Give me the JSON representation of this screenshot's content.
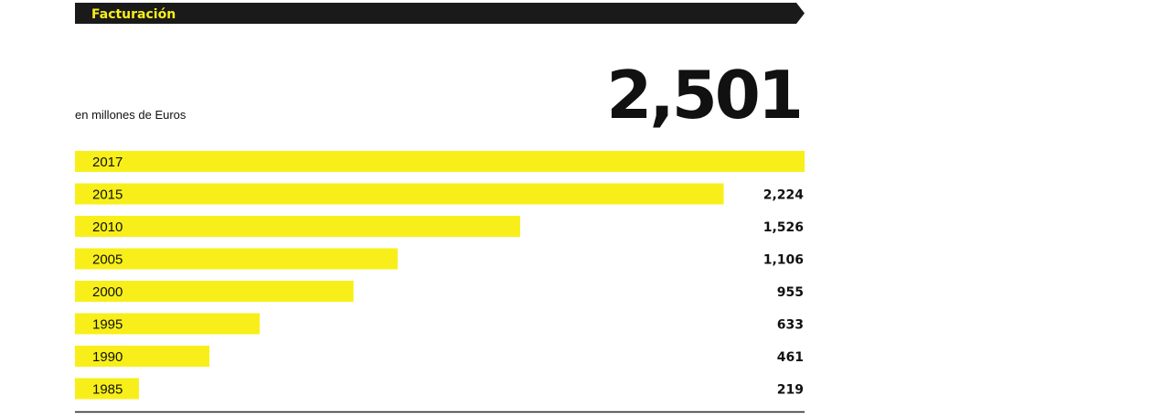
{
  "header": {
    "title": "Facturación"
  },
  "subtitle": "en millones de Euros",
  "highlight_value": "2,501",
  "colors": {
    "bar": "#f8ef1a",
    "header_bg": "#1a1a1a",
    "header_text": "#f8ef1a",
    "text": "#111111",
    "rule": "#222222"
  },
  "chart_data": {
    "type": "bar",
    "orientation": "horizontal",
    "title": "Facturación",
    "unit": "en millones de Euros",
    "categories": [
      "2017",
      "2015",
      "2010",
      "2005",
      "2000",
      "1995",
      "1990",
      "1985"
    ],
    "values": [
      2501,
      2224,
      1526,
      1106,
      955,
      633,
      461,
      219
    ],
    "value_labels": [
      "2,501",
      "2,224",
      "1,526",
      "1,106",
      "955",
      "633",
      "461",
      "219"
    ],
    "xlim": [
      0,
      2501
    ]
  }
}
